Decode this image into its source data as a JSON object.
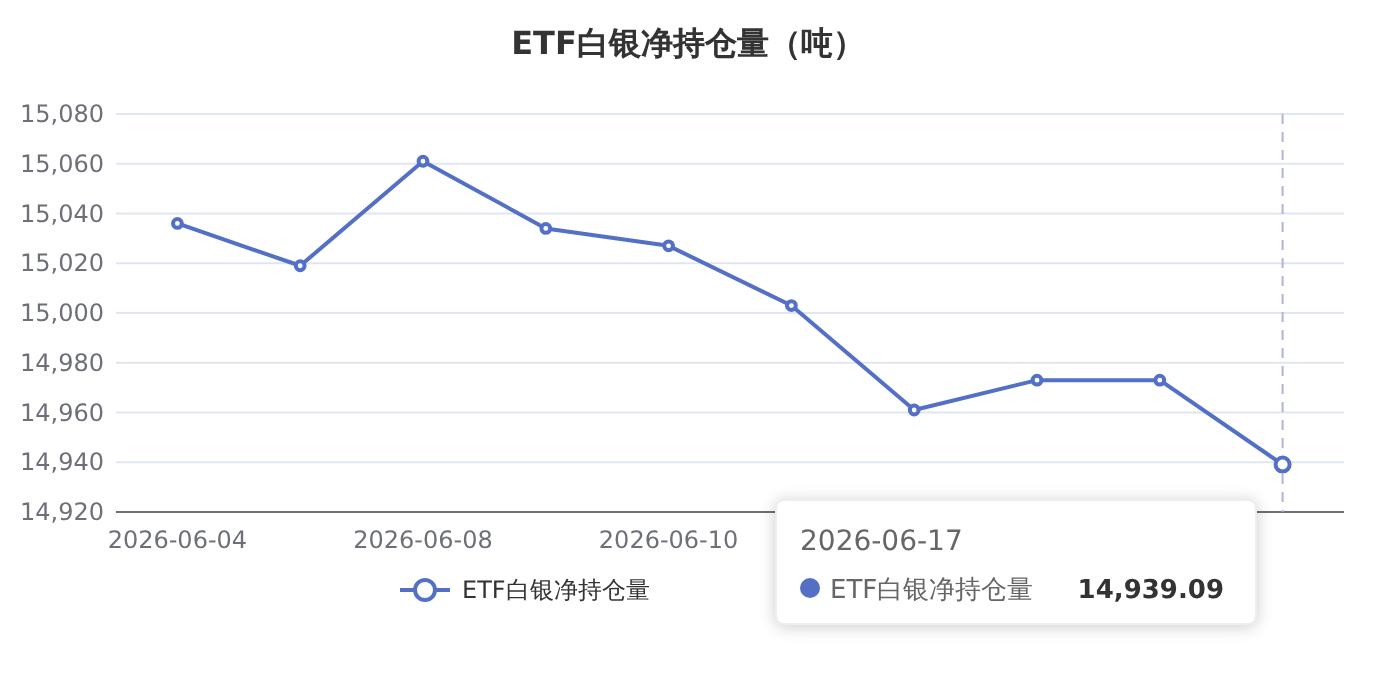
{
  "chart_data": {
    "type": "line",
    "title": "ETF白银净持仓量（吨）",
    "categories": [
      "2026-06-04",
      null,
      "2026-06-08",
      null,
      "2026-06-10",
      null,
      null,
      null,
      null,
      null
    ],
    "series": [
      {
        "name": "ETF白银净持仓量",
        "color": "#5470c6",
        "values": [
          15036,
          15019,
          15061,
          15034,
          15027,
          15003,
          14961,
          14973,
          14973,
          14939.09
        ]
      }
    ],
    "ylim": [
      14920,
      15080
    ],
    "yticks": [
      {
        "value": 14920,
        "label": "14,920"
      },
      {
        "value": 14940,
        "label": "14,940"
      },
      {
        "value": 14960,
        "label": "14,960"
      },
      {
        "value": 14980,
        "label": "14,980"
      },
      {
        "value": 15000,
        "label": "15,000"
      },
      {
        "value": 15020,
        "label": "15,020"
      },
      {
        "value": 15040,
        "label": "15,040"
      },
      {
        "value": 15060,
        "label": "15,060"
      },
      {
        "value": 15080,
        "label": "15,080"
      }
    ],
    "grid": "y",
    "legend": "bottom",
    "marker": "circle",
    "line_style": "solid",
    "annotations": [
      "2026-06-17",
      "ETF白银净持仓量",
      "14,939.09"
    ]
  }
}
